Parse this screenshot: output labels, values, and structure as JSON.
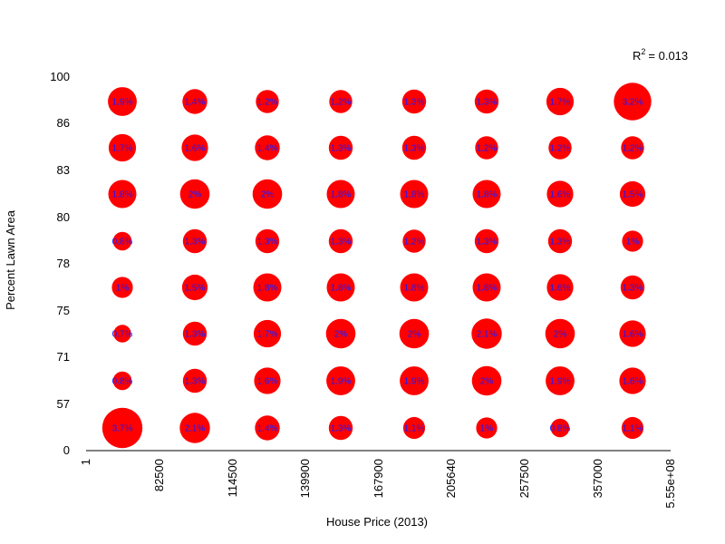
{
  "chart_data": {
    "type": "bubble-grid",
    "title": "",
    "xlabel": "House Price (2013)",
    "ylabel": "Percent Lawn Area",
    "x_tick_labels": [
      "1",
      "82500",
      "114500",
      "139900",
      "167900",
      "205640",
      "257500",
      "357000",
      "5.55e+08"
    ],
    "y_tick_labels": [
      "0",
      "57",
      "71",
      "75",
      "78",
      "80",
      "83",
      "86",
      "100"
    ],
    "annotation": {
      "prefix": "R",
      "superscript": "2",
      "suffix": "= 0.013"
    },
    "colors": {
      "bubble": "#ff0000",
      "label": "#1a1aff",
      "axis": "#000000"
    },
    "rows_top_to_bottom": [
      [
        {
          "value": 1.9,
          "label": "1.9%"
        },
        {
          "value": 1.4,
          "label": "1.4%"
        },
        {
          "value": 1.2,
          "label": "1.2%"
        },
        {
          "value": 1.2,
          "label": "1.2%"
        },
        {
          "value": 1.3,
          "label": "1.3%"
        },
        {
          "value": 1.3,
          "label": "1.3%"
        },
        {
          "value": 1.7,
          "label": "1.7%"
        },
        {
          "value": 3.2,
          "label": "3.2%"
        }
      ],
      [
        {
          "value": 1.7,
          "label": "1.7%"
        },
        {
          "value": 1.6,
          "label": "1.6%"
        },
        {
          "value": 1.4,
          "label": "1.4%"
        },
        {
          "value": 1.3,
          "label": "1.3%"
        },
        {
          "value": 1.3,
          "label": "1.3%"
        },
        {
          "value": 1.2,
          "label": "1.2%"
        },
        {
          "value": 1.2,
          "label": "1.2%"
        },
        {
          "value": 1.2,
          "label": "1.2%"
        }
      ],
      [
        {
          "value": 1.8,
          "label": "1.8%"
        },
        {
          "value": 2.0,
          "label": "2%"
        },
        {
          "value": 2.0,
          "label": "2%"
        },
        {
          "value": 1.8,
          "label": "1.8%"
        },
        {
          "value": 1.8,
          "label": "1.8%"
        },
        {
          "value": 1.8,
          "label": "1.8%"
        },
        {
          "value": 1.6,
          "label": "1.6%"
        },
        {
          "value": 1.5,
          "label": "1.5%"
        }
      ],
      [
        {
          "value": 0.8,
          "label": "0.8%"
        },
        {
          "value": 1.3,
          "label": "1.3%"
        },
        {
          "value": 1.3,
          "label": "1.3%"
        },
        {
          "value": 1.3,
          "label": "1.3%"
        },
        {
          "value": 1.2,
          "label": "1.2%"
        },
        {
          "value": 1.3,
          "label": "1.3%"
        },
        {
          "value": 1.3,
          "label": "1.3%"
        },
        {
          "value": 1.0,
          "label": "1%"
        }
      ],
      [
        {
          "value": 1.0,
          "label": "1%"
        },
        {
          "value": 1.5,
          "label": "1.5%"
        },
        {
          "value": 1.8,
          "label": "1.8%"
        },
        {
          "value": 1.8,
          "label": "1.8%"
        },
        {
          "value": 1.8,
          "label": "1.8%"
        },
        {
          "value": 1.8,
          "label": "1.8%"
        },
        {
          "value": 1.6,
          "label": "1.6%"
        },
        {
          "value": 1.3,
          "label": "1.3%"
        }
      ],
      [
        {
          "value": 0.7,
          "label": "0.7%"
        },
        {
          "value": 1.3,
          "label": "1.3%"
        },
        {
          "value": 1.7,
          "label": "1.7%"
        },
        {
          "value": 2.0,
          "label": "2%"
        },
        {
          "value": 2.0,
          "label": "2%"
        },
        {
          "value": 2.1,
          "label": "2.1%"
        },
        {
          "value": 2.0,
          "label": "2%"
        },
        {
          "value": 1.6,
          "label": "1.6%"
        }
      ],
      [
        {
          "value": 0.8,
          "label": "0.8%"
        },
        {
          "value": 1.3,
          "label": "1.3%"
        },
        {
          "value": 1.6,
          "label": "1.6%"
        },
        {
          "value": 1.9,
          "label": "1.9%"
        },
        {
          "value": 1.9,
          "label": "1.9%"
        },
        {
          "value": 2.0,
          "label": "2%"
        },
        {
          "value": 1.9,
          "label": "1.9%"
        },
        {
          "value": 1.6,
          "label": "1.6%"
        }
      ],
      [
        {
          "value": 3.7,
          "label": "3.7%"
        },
        {
          "value": 2.1,
          "label": "2.1%"
        },
        {
          "value": 1.4,
          "label": "1.4%"
        },
        {
          "value": 1.3,
          "label": "1.3%"
        },
        {
          "value": 1.1,
          "label": "1.1%"
        },
        {
          "value": 1.0,
          "label": "1%"
        },
        {
          "value": 0.8,
          "label": "0.8%"
        },
        {
          "value": 1.1,
          "label": "1.1%"
        }
      ]
    ]
  }
}
